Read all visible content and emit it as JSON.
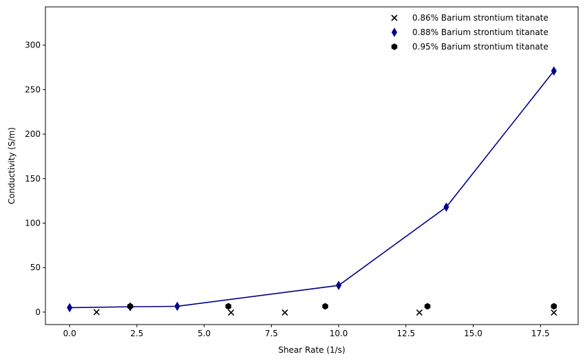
{
  "chart_data": {
    "type": "scatter",
    "xlabel": "Shear Rate (1/s)",
    "ylabel": "Conductivity (S/m)",
    "xlim": [
      -0.9,
      18.9
    ],
    "ylim": [
      -14,
      343
    ],
    "xticks": [
      0.0,
      2.5,
      5.0,
      7.5,
      10.0,
      12.5,
      15.0,
      17.5
    ],
    "xtick_labels": [
      "0.0",
      "2.5",
      "5.0",
      "7.5",
      "10.0",
      "12.5",
      "15.0",
      "17.5"
    ],
    "yticks": [
      0,
      50,
      100,
      150,
      200,
      250,
      300
    ],
    "ytick_labels": [
      "0",
      "50",
      "100",
      "150",
      "200",
      "250",
      "300"
    ],
    "grid": false,
    "legend_position": "top-right",
    "series": [
      {
        "name": "0.86% Barium strontium titanate",
        "marker": "x",
        "color": "#000000",
        "line": false,
        "x": [
          1,
          6,
          8,
          13,
          18
        ],
        "y": [
          0,
          -0.5,
          -0.5,
          -0.5,
          -0.5
        ]
      },
      {
        "name": "0.88% Barium strontium titanate",
        "marker": "thin-diamond",
        "color": "#00008b",
        "line": true,
        "x": [
          0,
          2.25,
          4,
          10,
          14,
          18
        ],
        "y": [
          5,
          6,
          6.5,
          30,
          118,
          271
        ]
      },
      {
        "name": "0.95% Barium strontium titanate",
        "marker": "hexagon",
        "color": "#000000",
        "line": false,
        "x": [
          2.25,
          5.9,
          9.5,
          13.3,
          18
        ],
        "y": [
          6.5,
          6.5,
          6.5,
          6.5,
          6.5
        ]
      }
    ]
  }
}
